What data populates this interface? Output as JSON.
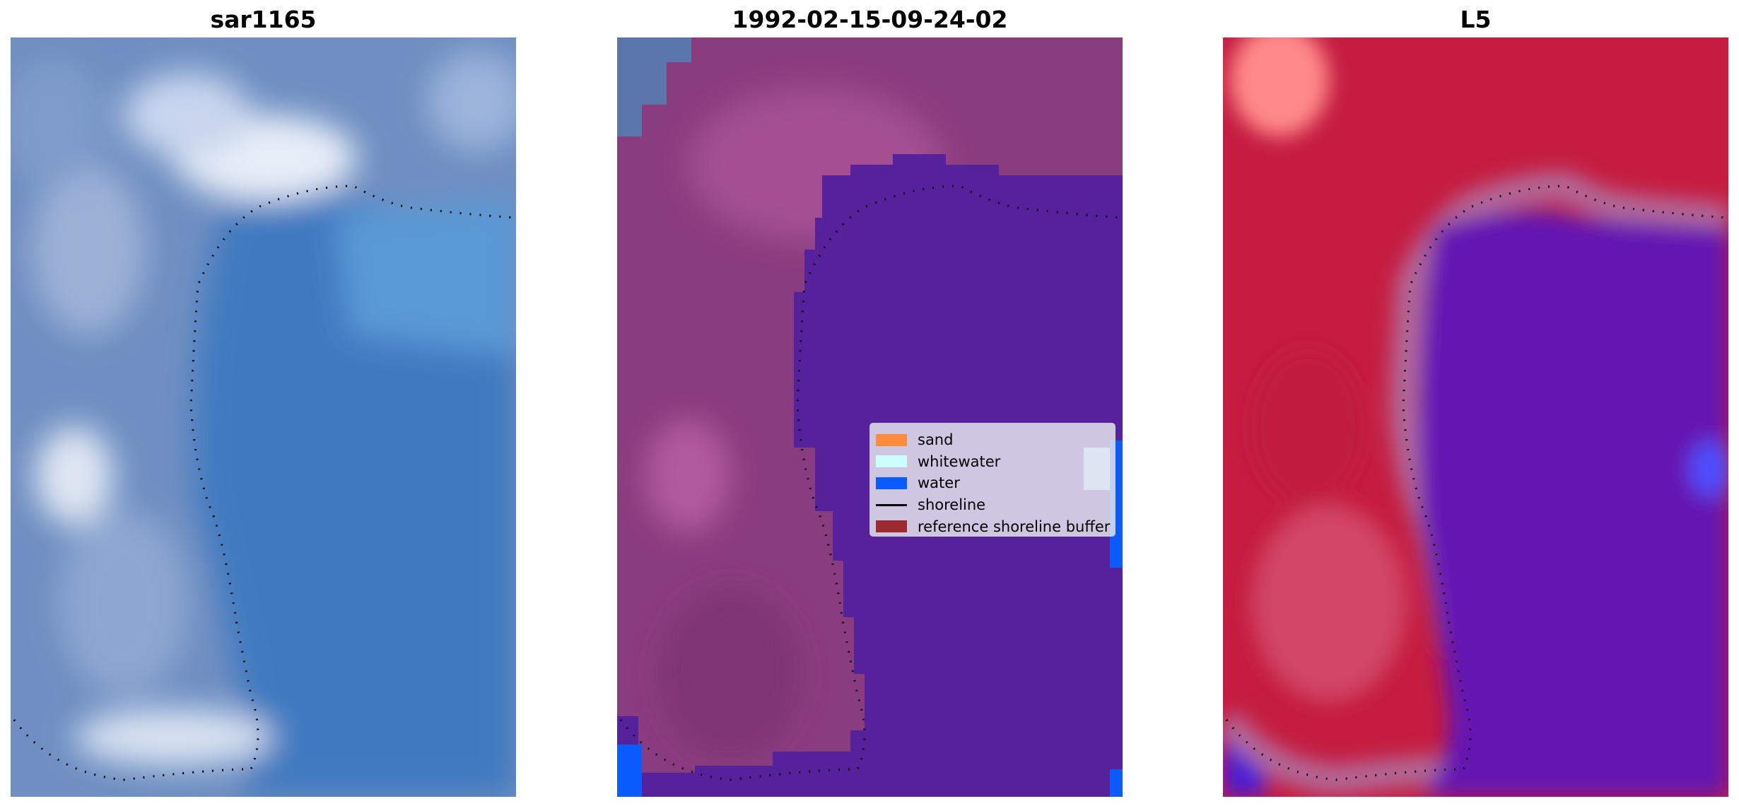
{
  "panels": [
    {
      "title": "sar1165"
    },
    {
      "title": "1992-02-15-09-24-02"
    },
    {
      "title": "L5"
    }
  ],
  "legend": {
    "items": [
      {
        "label": "sand",
        "color": "#ff8c3c",
        "kind": "patch"
      },
      {
        "label": "whitewater",
        "color": "#ccffff",
        "kind": "patch"
      },
      {
        "label": "water",
        "color": "#0a5cff",
        "kind": "patch"
      },
      {
        "label": "shoreline",
        "color": "#000000",
        "kind": "line"
      },
      {
        "label": "reference shoreline buffer",
        "color": "#9b2a31",
        "kind": "patch"
      }
    ]
  },
  "colors": {
    "rgb_water": "#4a80c2",
    "rgb_land": "#8fa6cf",
    "class_land": "#8c3c82",
    "class_water": "#5a22a0",
    "prob_land": "#c41a3e",
    "prob_water": "#6a12b0"
  }
}
